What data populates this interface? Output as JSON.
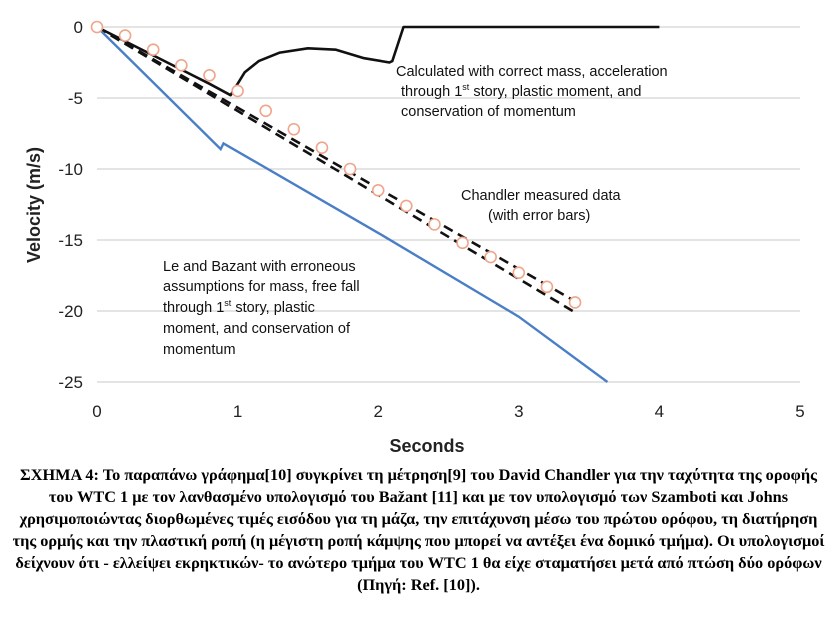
{
  "chart_data": {
    "type": "line",
    "xlabel": "Seconds",
    "ylabel": "Velocity (m/s)",
    "xlim": [
      0,
      5
    ],
    "ylim": [
      -25,
      0
    ],
    "x_ticks": [
      "0",
      "1",
      "2",
      "3",
      "4",
      "5"
    ],
    "y_ticks": [
      "0",
      "-5",
      "-10",
      "-15",
      "-20",
      "-25"
    ],
    "grid": "horizontal",
    "colors": {
      "grid": "#c8c8c8",
      "calculated": "#111111",
      "le_bazant": "#4a7ec7",
      "chandler_marker": "#f0a58a",
      "error_band": "#111111"
    },
    "series": [
      {
        "key": "calculated",
        "style": "solid-black",
        "points": [
          [
            0,
            0
          ],
          [
            0.2,
            -1
          ],
          [
            0.4,
            -2
          ],
          [
            0.6,
            -3
          ],
          [
            0.8,
            -4
          ],
          [
            0.95,
            -4.8
          ],
          [
            1.0,
            -4.0
          ],
          [
            1.05,
            -3.2
          ],
          [
            1.15,
            -2.4
          ],
          [
            1.3,
            -1.8
          ],
          [
            1.5,
            -1.5
          ],
          [
            1.7,
            -1.6
          ],
          [
            1.9,
            -2.2
          ],
          [
            2.08,
            -2.5
          ],
          [
            2.1,
            -2.4
          ],
          [
            2.18,
            0
          ],
          [
            4.0,
            0
          ]
        ]
      },
      {
        "key": "le_bazant",
        "style": "solid-blue",
        "points": [
          [
            0,
            0
          ],
          [
            0.88,
            -8.6
          ],
          [
            0.9,
            -8.2
          ],
          [
            2.0,
            -14.5
          ],
          [
            3.0,
            -20.4
          ],
          [
            3.63,
            -25
          ]
        ]
      },
      {
        "key": "band_upper",
        "style": "dashed-black",
        "points": [
          [
            0,
            0
          ],
          [
            3.38,
            -19.2
          ]
        ]
      },
      {
        "key": "band_lower",
        "style": "dashed-black",
        "points": [
          [
            0,
            0
          ],
          [
            3.4,
            -20.1
          ]
        ]
      },
      {
        "key": "chandler",
        "style": "circle-markers",
        "points": [
          [
            0,
            0
          ],
          [
            0.2,
            -0.6
          ],
          [
            0.4,
            -1.6
          ],
          [
            0.6,
            -2.7
          ],
          [
            0.8,
            -3.4
          ],
          [
            1.0,
            -4.5
          ],
          [
            1.2,
            -5.9
          ],
          [
            1.4,
            -7.2
          ],
          [
            1.6,
            -8.5
          ],
          [
            1.8,
            -10.0
          ],
          [
            2.0,
            -11.5
          ],
          [
            2.2,
            -12.6
          ],
          [
            2.4,
            -13.9
          ],
          [
            2.6,
            -15.2
          ],
          [
            2.8,
            -16.2
          ],
          [
            3.0,
            -17.3
          ],
          [
            3.2,
            -18.3
          ],
          [
            3.4,
            -19.4
          ]
        ]
      }
    ]
  },
  "annotations": {
    "calculated": {
      "line1": "Calculated with correct mass, acceleration",
      "line2_pre": "through 1",
      "line2_sup": "st",
      "line2_post": " story, plastic moment, and",
      "line3": "conservation of momentum"
    },
    "chandler": {
      "line1": "Chandler measured data",
      "line2": "(with error bars)"
    },
    "le_bazant": {
      "line1": "Le and Bazant with erroneous",
      "line2": "assumptions for mass, free fall",
      "line3_pre": "through 1",
      "line3_sup": "st",
      "line3_post": " story, plastic",
      "line4": "moment, and conservation of",
      "line5": "momentum"
    }
  },
  "caption": "ΣΧΗΜΑ 4: Το παραπάνω γράφημα[10] συγκρίνει τη μέτρηση[9] του David Chandler για την ταχύτητα της οροφής του WTC 1 με τον λανθασμένο υπολογισμό του Bažant [11] και με τον υπολογισμό των Szamboti και Johns χρησιμοποιώντας διορθωμένες τιμές εισόδου για τη μάζα, την επιτάχυνση μέσω του πρώτου ορόφου, τη διατήρηση της ορμής και την πλαστική ροπή (η μέγιστη ροπή κάμψης που μπορεί να αντέξει ένα δομικό τμήμα). Οι υπολογισμοί δείχνουν ότι - ελλείψει εκρηκτικών- το ανώτερο τμήμα του WTC 1 θα είχε σταματήσει μετά από πτώση δύο ορόφων (Πηγή: Ref. [10])."
}
